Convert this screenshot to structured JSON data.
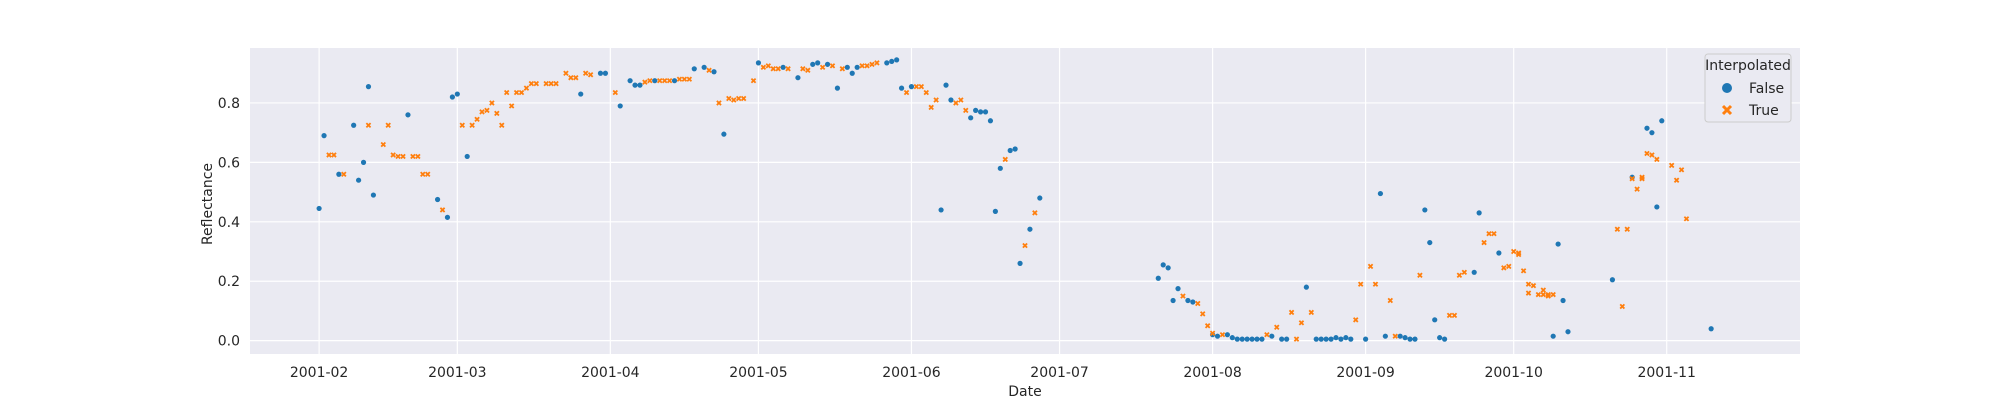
{
  "chart_data": {
    "type": "scatter",
    "title": "",
    "xlabel": "Date",
    "ylabel": "Reflectance",
    "x_ticks": [
      "2001-02",
      "2001-03",
      "2001-04",
      "2001-05",
      "2001-06",
      "2001-07",
      "2001-08",
      "2001-09",
      "2001-10",
      "2001-11"
    ],
    "xlim": [
      "2001-01-18",
      "2001-11-28"
    ],
    "y_ticks": [
      "0.0",
      "0.2",
      "0.4",
      "0.6",
      "0.8"
    ],
    "ylim": [
      -0.045,
      0.985
    ],
    "grid": true,
    "style": "seaborn-darkgrid",
    "legend": {
      "title": "Interpolated",
      "placement": "top-right",
      "entries": [
        "False",
        "True"
      ]
    },
    "colors": {
      "False": "#1f77b4",
      "True": "#ff7f0e",
      "background": "#eaeaf2"
    },
    "series": [
      {
        "name": "False",
        "marker": "circle",
        "points": [
          [
            "2001-02-01",
            0.445
          ],
          [
            "2001-02-02",
            0.69
          ],
          [
            "2001-02-05",
            0.56
          ],
          [
            "2001-02-08",
            0.725
          ],
          [
            "2001-02-09",
            0.54
          ],
          [
            "2001-02-10",
            0.6
          ],
          [
            "2001-02-11",
            0.855
          ],
          [
            "2001-02-12",
            0.49
          ],
          [
            "2001-02-19",
            0.76
          ],
          [
            "2001-02-25",
            0.475
          ],
          [
            "2001-02-27",
            0.415
          ],
          [
            "2001-02-28",
            0.82
          ],
          [
            "2001-03-01",
            0.83
          ],
          [
            "2001-03-03",
            0.62
          ],
          [
            "2001-03-26",
            0.83
          ],
          [
            "2001-03-30",
            0.9
          ],
          [
            "2001-03-31",
            0.9
          ],
          [
            "2001-04-03",
            0.79
          ],
          [
            "2001-04-05",
            0.875
          ],
          [
            "2001-04-06",
            0.86
          ],
          [
            "2001-04-07",
            0.86
          ],
          [
            "2001-04-10",
            0.875
          ],
          [
            "2001-04-14",
            0.875
          ],
          [
            "2001-04-18",
            0.915
          ],
          [
            "2001-04-20",
            0.92
          ],
          [
            "2001-04-22",
            0.905
          ],
          [
            "2001-04-24",
            0.695
          ],
          [
            "2001-05-01",
            0.935
          ],
          [
            "2001-05-06",
            0.92
          ],
          [
            "2001-05-09",
            0.885
          ],
          [
            "2001-05-12",
            0.93
          ],
          [
            "2001-05-13",
            0.935
          ],
          [
            "2001-05-15",
            0.93
          ],
          [
            "2001-05-17",
            0.85
          ],
          [
            "2001-05-19",
            0.92
          ],
          [
            "2001-05-20",
            0.9
          ],
          [
            "2001-05-21",
            0.92
          ],
          [
            "2001-05-27",
            0.935
          ],
          [
            "2001-05-28",
            0.94
          ],
          [
            "2001-05-29",
            0.945
          ],
          [
            "2001-05-30",
            0.85
          ],
          [
            "2001-06-01",
            0.855
          ],
          [
            "2001-06-07",
            0.44
          ],
          [
            "2001-06-08",
            0.86
          ],
          [
            "2001-06-09",
            0.81
          ],
          [
            "2001-06-13",
            0.75
          ],
          [
            "2001-06-14",
            0.775
          ],
          [
            "2001-06-15",
            0.77
          ],
          [
            "2001-06-16",
            0.77
          ],
          [
            "2001-06-17",
            0.74
          ],
          [
            "2001-06-18",
            0.435
          ],
          [
            "2001-06-19",
            0.58
          ],
          [
            "2001-06-21",
            0.64
          ],
          [
            "2001-06-22",
            0.645
          ],
          [
            "2001-06-23",
            0.26
          ],
          [
            "2001-06-25",
            0.375
          ],
          [
            "2001-06-27",
            0.48
          ],
          [
            "2001-07-21",
            0.21
          ],
          [
            "2001-07-22",
            0.255
          ],
          [
            "2001-07-23",
            0.245
          ],
          [
            "2001-07-24",
            0.135
          ],
          [
            "2001-07-25",
            0.175
          ],
          [
            "2001-07-27",
            0.135
          ],
          [
            "2001-07-28",
            0.13
          ],
          [
            "2001-08-01",
            0.02
          ],
          [
            "2001-08-02",
            0.015
          ],
          [
            "2001-08-04",
            0.02
          ],
          [
            "2001-08-05",
            0.01
          ],
          [
            "2001-08-06",
            0.005
          ],
          [
            "2001-08-07",
            0.005
          ],
          [
            "2001-08-08",
            0.005
          ],
          [
            "2001-08-09",
            0.005
          ],
          [
            "2001-08-10",
            0.005
          ],
          [
            "2001-08-11",
            0.005
          ],
          [
            "2001-08-13",
            0.015
          ],
          [
            "2001-08-15",
            0.005
          ],
          [
            "2001-08-16",
            0.005
          ],
          [
            "2001-08-20",
            0.18
          ],
          [
            "2001-08-22",
            0.005
          ],
          [
            "2001-08-23",
            0.005
          ],
          [
            "2001-08-24",
            0.005
          ],
          [
            "2001-08-25",
            0.005
          ],
          [
            "2001-08-26",
            0.01
          ],
          [
            "2001-08-27",
            0.005
          ],
          [
            "2001-08-28",
            0.01
          ],
          [
            "2001-08-29",
            0.005
          ],
          [
            "2001-09-01",
            0.005
          ],
          [
            "2001-09-04",
            0.495
          ],
          [
            "2001-09-05",
            0.015
          ],
          [
            "2001-09-08",
            0.015
          ],
          [
            "2001-09-09",
            0.01
          ],
          [
            "2001-09-10",
            0.005
          ],
          [
            "2001-09-11",
            0.005
          ],
          [
            "2001-09-13",
            0.44
          ],
          [
            "2001-09-14",
            0.33
          ],
          [
            "2001-09-15",
            0.07
          ],
          [
            "2001-09-16",
            0.01
          ],
          [
            "2001-09-17",
            0.005
          ],
          [
            "2001-09-23",
            0.23
          ],
          [
            "2001-09-24",
            0.43
          ],
          [
            "2001-09-28",
            0.295
          ],
          [
            "2001-10-09",
            0.015
          ],
          [
            "2001-10-10",
            0.325
          ],
          [
            "2001-10-11",
            0.135
          ],
          [
            "2001-10-12",
            0.03
          ],
          [
            "2001-10-21",
            0.205
          ],
          [
            "2001-10-25",
            0.55
          ],
          [
            "2001-10-28",
            0.715
          ],
          [
            "2001-10-29",
            0.7
          ],
          [
            "2001-10-30",
            0.45
          ],
          [
            "2001-10-31",
            0.74
          ],
          [
            "2001-11-10",
            0.04
          ]
        ]
      },
      {
        "name": "True",
        "marker": "x",
        "points": [
          [
            "2001-02-03",
            0.625
          ],
          [
            "2001-02-04",
            0.625
          ],
          [
            "2001-02-06",
            0.56
          ],
          [
            "2001-02-11",
            0.725
          ],
          [
            "2001-02-14",
            0.66
          ],
          [
            "2001-02-15",
            0.725
          ],
          [
            "2001-02-16",
            0.625
          ],
          [
            "2001-02-17",
            0.62
          ],
          [
            "2001-02-18",
            0.62
          ],
          [
            "2001-02-20",
            0.62
          ],
          [
            "2001-02-21",
            0.62
          ],
          [
            "2001-02-22",
            0.56
          ],
          [
            "2001-02-23",
            0.56
          ],
          [
            "2001-02-26",
            0.44
          ],
          [
            "2001-03-02",
            0.725
          ],
          [
            "2001-03-04",
            0.725
          ],
          [
            "2001-03-05",
            0.745
          ],
          [
            "2001-03-06",
            0.77
          ],
          [
            "2001-03-07",
            0.775
          ],
          [
            "2001-03-08",
            0.8
          ],
          [
            "2001-03-09",
            0.765
          ],
          [
            "2001-03-10",
            0.725
          ],
          [
            "2001-03-11",
            0.835
          ],
          [
            "2001-03-12",
            0.79
          ],
          [
            "2001-03-13",
            0.835
          ],
          [
            "2001-03-14",
            0.835
          ],
          [
            "2001-03-15",
            0.85
          ],
          [
            "2001-03-16",
            0.865
          ],
          [
            "2001-03-17",
            0.865
          ],
          [
            "2001-03-19",
            0.865
          ],
          [
            "2001-03-20",
            0.865
          ],
          [
            "2001-03-21",
            0.865
          ],
          [
            "2001-03-23",
            0.9
          ],
          [
            "2001-03-24",
            0.885
          ],
          [
            "2001-03-25",
            0.885
          ],
          [
            "2001-03-27",
            0.9
          ],
          [
            "2001-03-28",
            0.895
          ],
          [
            "2001-04-02",
            0.835
          ],
          [
            "2001-04-08",
            0.87
          ],
          [
            "2001-04-09",
            0.875
          ],
          [
            "2001-04-11",
            0.875
          ],
          [
            "2001-04-12",
            0.875
          ],
          [
            "2001-04-13",
            0.875
          ],
          [
            "2001-04-15",
            0.88
          ],
          [
            "2001-04-16",
            0.88
          ],
          [
            "2001-04-17",
            0.88
          ],
          [
            "2001-04-21",
            0.91
          ],
          [
            "2001-04-23",
            0.8
          ],
          [
            "2001-04-25",
            0.815
          ],
          [
            "2001-04-26",
            0.81
          ],
          [
            "2001-04-27",
            0.815
          ],
          [
            "2001-04-28",
            0.815
          ],
          [
            "2001-04-30",
            0.875
          ],
          [
            "2001-05-02",
            0.92
          ],
          [
            "2001-05-03",
            0.925
          ],
          [
            "2001-05-04",
            0.915
          ],
          [
            "2001-05-05",
            0.915
          ],
          [
            "2001-05-07",
            0.915
          ],
          [
            "2001-05-10",
            0.915
          ],
          [
            "2001-05-11",
            0.91
          ],
          [
            "2001-05-14",
            0.92
          ],
          [
            "2001-05-16",
            0.925
          ],
          [
            "2001-05-18",
            0.915
          ],
          [
            "2001-05-22",
            0.925
          ],
          [
            "2001-05-23",
            0.925
          ],
          [
            "2001-05-24",
            0.93
          ],
          [
            "2001-05-25",
            0.935
          ],
          [
            "2001-05-31",
            0.835
          ],
          [
            "2001-06-02",
            0.855
          ],
          [
            "2001-06-03",
            0.855
          ],
          [
            "2001-06-04",
            0.835
          ],
          [
            "2001-06-05",
            0.785
          ],
          [
            "2001-06-06",
            0.81
          ],
          [
            "2001-06-10",
            0.8
          ],
          [
            "2001-06-11",
            0.81
          ],
          [
            "2001-06-12",
            0.775
          ],
          [
            "2001-06-20",
            0.61
          ],
          [
            "2001-06-24",
            0.32
          ],
          [
            "2001-06-26",
            0.43
          ],
          [
            "2001-07-26",
            0.15
          ],
          [
            "2001-07-29",
            0.125
          ],
          [
            "2001-07-30",
            0.09
          ],
          [
            "2001-07-31",
            0.05
          ],
          [
            "2001-08-01",
            0.025
          ],
          [
            "2001-08-03",
            0.02
          ],
          [
            "2001-08-12",
            0.02
          ],
          [
            "2001-08-14",
            0.045
          ],
          [
            "2001-08-17",
            0.095
          ],
          [
            "2001-08-18",
            0.005
          ],
          [
            "2001-08-19",
            0.06
          ],
          [
            "2001-08-21",
            0.095
          ],
          [
            "2001-08-30",
            0.07
          ],
          [
            "2001-08-31",
            0.19
          ],
          [
            "2001-09-02",
            0.25
          ],
          [
            "2001-09-03",
            0.19
          ],
          [
            "2001-09-06",
            0.135
          ],
          [
            "2001-09-07",
            0.015
          ],
          [
            "2001-09-12",
            0.22
          ],
          [
            "2001-09-18",
            0.085
          ],
          [
            "2001-09-19",
            0.085
          ],
          [
            "2001-09-20",
            0.22
          ],
          [
            "2001-09-21",
            0.23
          ],
          [
            "2001-09-25",
            0.33
          ],
          [
            "2001-09-26",
            0.36
          ],
          [
            "2001-09-27",
            0.36
          ],
          [
            "2001-09-29",
            0.245
          ],
          [
            "2001-09-30",
            0.25
          ],
          [
            "2001-10-01",
            0.3
          ],
          [
            "2001-10-02",
            0.295
          ],
          [
            "2001-10-03",
            0.235
          ],
          [
            "2001-10-04",
            0.16
          ],
          [
            "2001-10-05",
            0.185
          ],
          [
            "2001-10-06",
            0.155
          ],
          [
            "2001-10-07",
            0.155
          ],
          [
            "2001-10-08",
            0.155
          ],
          [
            "2001-10-09",
            0.155
          ],
          [
            "2001-10-07",
            0.17
          ],
          [
            "2001-10-08",
            0.15
          ],
          [
            "2001-10-02",
            0.29
          ],
          [
            "2001-10-04",
            0.19
          ],
          [
            "2001-10-23",
            0.115
          ],
          [
            "2001-10-22",
            0.375
          ],
          [
            "2001-10-24",
            0.375
          ],
          [
            "2001-10-25",
            0.545
          ],
          [
            "2001-10-26",
            0.51
          ],
          [
            "2001-10-27",
            0.55
          ],
          [
            "2001-10-27",
            0.545
          ],
          [
            "2001-10-28",
            0.63
          ],
          [
            "2001-10-29",
            0.625
          ],
          [
            "2001-10-30",
            0.61
          ],
          [
            "2001-11-02",
            0.59
          ],
          [
            "2001-11-03",
            0.54
          ],
          [
            "2001-11-04",
            0.575
          ],
          [
            "2001-11-05",
            0.41
          ]
        ]
      }
    ]
  }
}
